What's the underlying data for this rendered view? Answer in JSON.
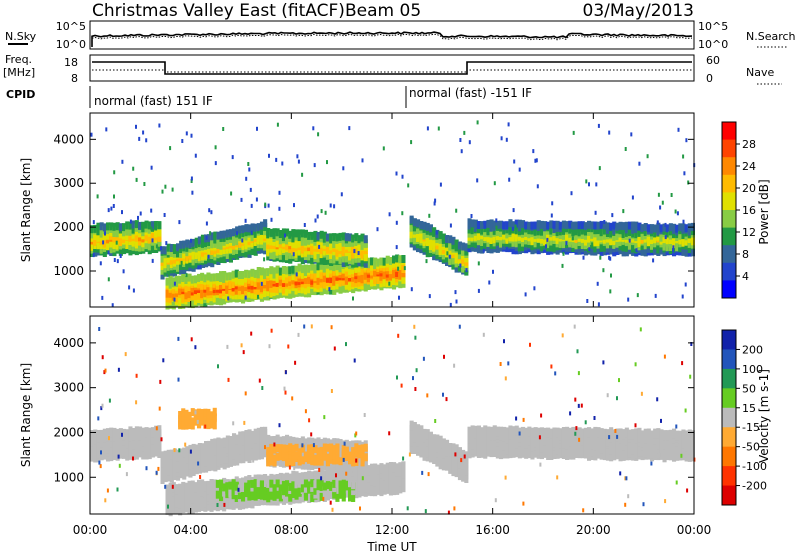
{
  "header": {
    "title": "Christmas Valley East (fitACF)",
    "beam": "Beam 05",
    "date": "03/May/2013"
  },
  "noise_panel": {
    "left_label": "N.Sky",
    "left_ticks": [
      "10^5",
      "10^0"
    ],
    "right_label": "N.Search",
    "right_ticks": [
      "10^5",
      "10^0"
    ]
  },
  "freq_panel": {
    "left_label_line1": "Freq.",
    "left_label_line2": "[MHz]",
    "left_ticks": [
      "18",
      "8"
    ],
    "right_label": "Nave",
    "right_ticks": [
      "60",
      "0"
    ]
  },
  "cpid_panel": {
    "label": "CPID",
    "programs": [
      {
        "name": "normal (fast) 151 IF",
        "start_hour": 0
      },
      {
        "name": "normal (fast) -151 IF",
        "start_hour": 12.7
      }
    ]
  },
  "time_axis": {
    "xlabel": "Time UT",
    "ticks": [
      "00:00",
      "04:00",
      "08:00",
      "12:00",
      "16:00",
      "20:00",
      "00:00"
    ]
  },
  "power_panel": {
    "ylabel": "Slant Range [km]",
    "yticks": [
      "4000",
      "3000",
      "2000",
      "1000"
    ],
    "colorbar_label": "Power [dB]",
    "colorbar_ticks": [
      "28",
      "24",
      "20",
      "16",
      "12",
      "8",
      "4"
    ],
    "colors": [
      "#ff0000",
      "#ff4400",
      "#ff8800",
      "#ffbb00",
      "#e0e000",
      "#88cc44",
      "#229944",
      "#336699",
      "#2244cc",
      "#0000ff"
    ]
  },
  "velocity_panel": {
    "ylabel": "Slant Range [km]",
    "yticks": [
      "4000",
      "3000",
      "2000",
      "1000"
    ],
    "colorbar_label": "Velocity [m s-1]",
    "colorbar_ticks": [
      "200",
      "100",
      "50",
      "15",
      "-15",
      "-50",
      "-100",
      "-200"
    ],
    "colors": [
      "#1122aa",
      "#2255bb",
      "#229955",
      "#66cc22",
      "#bbbbbb",
      "#ffaa33",
      "#ff7700",
      "#ff3300",
      "#dd0000"
    ]
  },
  "chart_data": [
    {
      "type": "heatmap",
      "title": "Power",
      "x_range_hours": [
        0,
        24
      ],
      "y_range_km": [
        180,
        4600
      ],
      "bands": [
        {
          "t_start": 0,
          "t_end": 2.8,
          "range_center_km": [
            1700,
            1800
          ],
          "value_db": 22
        },
        {
          "t_start": 2.8,
          "t_end": 7,
          "range_center_km": [
            1200,
            1800
          ],
          "value_db": 20
        },
        {
          "t_start": 3,
          "t_end": 12.5,
          "range_center_km": [
            500,
            1000
          ],
          "value_db": 26
        },
        {
          "t_start": 7,
          "t_end": 11,
          "range_center_km": [
            1600,
            1450
          ],
          "value_db": 22
        },
        {
          "t_start": 12.7,
          "t_end": 15,
          "range_center_km": [
            1900,
            1200
          ],
          "value_db": 20
        },
        {
          "t_start": 15,
          "t_end": 24,
          "range_center_km": [
            1800,
            1700
          ],
          "value_db": 18
        }
      ],
      "colorbar_range_db": [
        0,
        32
      ]
    },
    {
      "type": "heatmap",
      "title": "Velocity",
      "x_range_hours": [
        0,
        24
      ],
      "y_range_km": [
        180,
        4600
      ],
      "bands": [
        {
          "t_start": 3.5,
          "t_end": 5,
          "range_center_km": [
            2300,
            2300
          ],
          "value_ms": -60
        },
        {
          "t_start": 7,
          "t_end": 11,
          "range_center_km": [
            1500,
            1500
          ],
          "value_ms": -50
        },
        {
          "t_start": 5,
          "t_end": 10.5,
          "range_center_km": [
            700,
            700
          ],
          "value_ms": 40
        },
        {
          "t_start": 0,
          "t_end": 24,
          "range_center_km": [
            1800,
            1800
          ],
          "value_ms": 0
        }
      ],
      "colorbar_range_ms": [
        -250,
        250
      ]
    }
  ]
}
